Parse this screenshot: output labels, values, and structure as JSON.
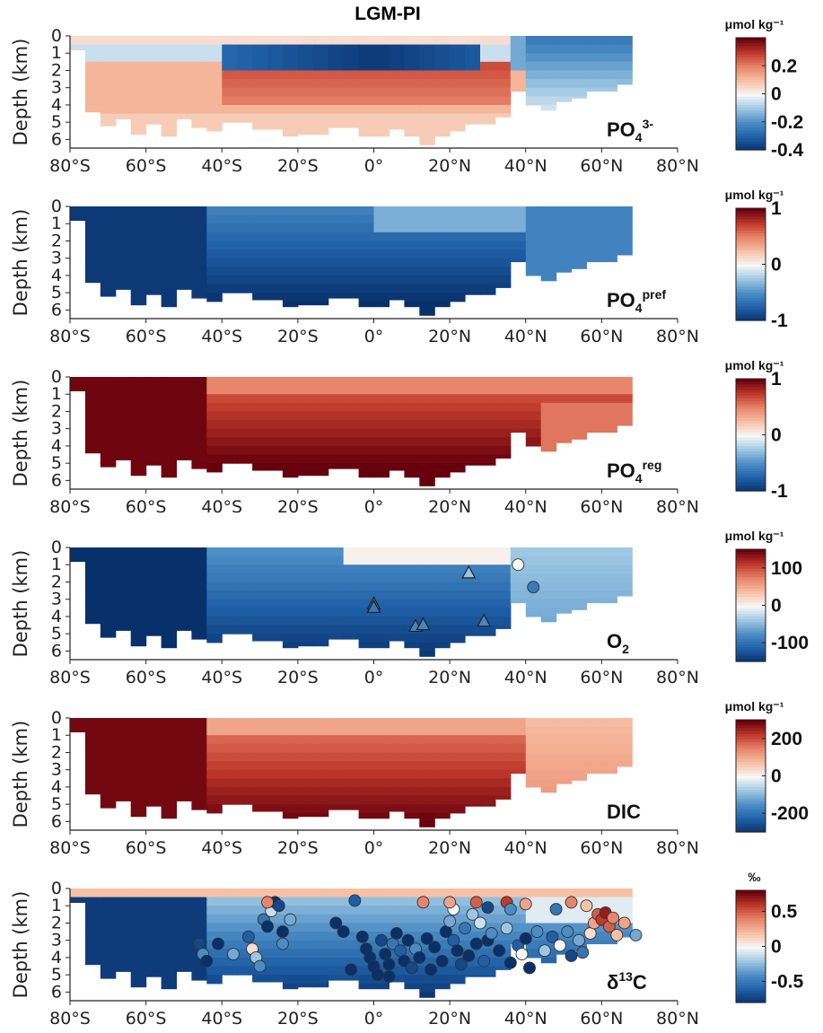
{
  "title": "LGM-PI",
  "colors": {
    "diverging_scale": [
      "#08306b",
      "#1f5fa6",
      "#4a8cc4",
      "#9cc6e2",
      "#f7f7f7",
      "#f7c1a6",
      "#e8856a",
      "#c0392b",
      "#67000d"
    ],
    "axis": "#222222"
  },
  "chart_data": [
    {
      "type": "heatmap",
      "name": "PO4 3-",
      "var_label": "PO",
      "var_sub": "4",
      "var_sup": "3-",
      "unit_label": "μmol kg⁻¹",
      "ylabel": "Depth (km)",
      "x_ticks": [
        "80°S",
        "60°S",
        "40°S",
        "20°S",
        "0°",
        "20°N",
        "40°N",
        "60°N",
        "80°N"
      ],
      "y_ticks": [
        "0",
        "1",
        "2",
        "3",
        "4",
        "5",
        "6"
      ],
      "xlim": [
        -80,
        80
      ],
      "ylim": [
        0,
        6.5
      ],
      "clim": [
        -0.4,
        0.4
      ],
      "cbar_ticks": [
        "0.2",
        "0",
        "-0.2",
        "-0.4"
      ],
      "cbar_tick_values": [
        0.2,
        0,
        -0.2,
        -0.4
      ],
      "markers": []
    },
    {
      "type": "heatmap",
      "name": "PO4 pref",
      "var_label": "PO",
      "var_sub": "4",
      "var_sup": "pref",
      "unit_label": "μmol kg⁻¹",
      "ylabel": "Depth (km)",
      "x_ticks": [
        "80°S",
        "60°S",
        "40°S",
        "20°S",
        "0°",
        "20°N",
        "40°N",
        "60°N",
        "80°N"
      ],
      "y_ticks": [
        "0",
        "1",
        "2",
        "3",
        "4",
        "5",
        "6"
      ],
      "xlim": [
        -80,
        80
      ],
      "ylim": [
        0,
        6.5
      ],
      "clim": [
        -1,
        1
      ],
      "cbar_ticks": [
        "1",
        "0",
        "-1"
      ],
      "cbar_tick_values": [
        1,
        0,
        -1
      ],
      "markers": []
    },
    {
      "type": "heatmap",
      "name": "PO4 reg",
      "var_label": "PO",
      "var_sub": "4",
      "var_sup": "reg",
      "unit_label": "μmol kg⁻¹",
      "ylabel": "Depth (km)",
      "x_ticks": [
        "80°S",
        "60°S",
        "40°S",
        "20°S",
        "0°",
        "20°N",
        "40°N",
        "60°N",
        "80°N"
      ],
      "y_ticks": [
        "0",
        "1",
        "2",
        "3",
        "4",
        "5",
        "6"
      ],
      "xlim": [
        -80,
        80
      ],
      "ylim": [
        0,
        6.5
      ],
      "clim": [
        -1,
        1
      ],
      "cbar_ticks": [
        "1",
        "0",
        "-1"
      ],
      "cbar_tick_values": [
        1,
        0,
        -1
      ],
      "markers": []
    },
    {
      "type": "heatmap",
      "name": "O2",
      "var_label": "O",
      "var_sub": "2",
      "var_sup": "",
      "unit_label": "μmol kg⁻¹",
      "ylabel": "Depth (km)",
      "x_ticks": [
        "80°S",
        "60°S",
        "40°S",
        "20°S",
        "0°",
        "20°N",
        "40°N",
        "60°N",
        "80°N"
      ],
      "y_ticks": [
        "0",
        "1",
        "2",
        "3",
        "4",
        "5",
        "6"
      ],
      "xlim": [
        -80,
        80
      ],
      "ylim": [
        0,
        6.5
      ],
      "clim": [
        -150,
        150
      ],
      "cbar_ticks": [
        "100",
        "0",
        "-100"
      ],
      "cbar_tick_values": [
        100,
        0,
        -100
      ],
      "markers": [
        {
          "shape": "triangle",
          "lat": 0,
          "depth": 3.3,
          "value": -90
        },
        {
          "shape": "triangle",
          "lat": 0,
          "depth": 3.5,
          "value": -90
        },
        {
          "shape": "triangle",
          "lat": 11,
          "depth": 4.6,
          "value": -80
        },
        {
          "shape": "triangle",
          "lat": 13,
          "depth": 4.5,
          "value": -80
        },
        {
          "shape": "triangle",
          "lat": 25,
          "depth": 1.5,
          "value": -40
        },
        {
          "shape": "triangle",
          "lat": 29,
          "depth": 4.3,
          "value": -80
        },
        {
          "shape": "circle",
          "lat": 38,
          "depth": 1.0,
          "value": 0
        },
        {
          "shape": "circle",
          "lat": 42,
          "depth": 2.3,
          "value": -90
        }
      ]
    },
    {
      "type": "heatmap",
      "name": "DIC",
      "var_label": "DIC",
      "var_sub": "",
      "var_sup": "",
      "unit_label": "μmol kg⁻¹",
      "ylabel": "Depth (km)",
      "x_ticks": [
        "80°S",
        "60°S",
        "40°S",
        "20°S",
        "0°",
        "20°N",
        "40°N",
        "60°N",
        "80°N"
      ],
      "y_ticks": [
        "0",
        "1",
        "2",
        "3",
        "4",
        "5",
        "6"
      ],
      "xlim": [
        -80,
        80
      ],
      "ylim": [
        0,
        6.5
      ],
      "clim": [
        -300,
        300
      ],
      "cbar_ticks": [
        "200",
        "0",
        "-200"
      ],
      "cbar_tick_values": [
        200,
        0,
        -200
      ],
      "markers": []
    },
    {
      "type": "heatmap",
      "name": "d13C",
      "var_label": "δ",
      "var_sub": "",
      "var_sup": "13",
      "var_tail": "C",
      "unit_label": "‰",
      "ylabel": "Depth (km)",
      "x_ticks": [
        "80°S",
        "60°S",
        "40°S",
        "20°S",
        "0°",
        "20°N",
        "40°N",
        "60°N",
        "80°N"
      ],
      "y_ticks": [
        "0",
        "1",
        "2",
        "3",
        "4",
        "5",
        "6"
      ],
      "xlim": [
        -80,
        80
      ],
      "ylim": [
        0,
        6.5
      ],
      "clim": [
        -0.8,
        0.8
      ],
      "cbar_ticks": [
        "0.5",
        "0",
        "-0.5"
      ],
      "cbar_tick_values": [
        0.5,
        0,
        -0.5
      ],
      "markers": [
        {
          "shape": "circle",
          "lat": -46,
          "depth": 3.2,
          "value": -0.7
        },
        {
          "shape": "circle",
          "lat": -45,
          "depth": 3.8,
          "value": -0.4
        },
        {
          "shape": "circle",
          "lat": -44,
          "depth": 4.2,
          "value": -0.9
        },
        {
          "shape": "circle",
          "lat": -41,
          "depth": 3.2,
          "value": -0.8
        },
        {
          "shape": "circle",
          "lat": -37,
          "depth": 3.8,
          "value": -0.3
        },
        {
          "shape": "circle",
          "lat": -33,
          "depth": 2.8,
          "value": -0.6
        },
        {
          "shape": "circle",
          "lat": -32,
          "depth": 3.5,
          "value": 0.1
        },
        {
          "shape": "circle",
          "lat": -31,
          "depth": 4.0,
          "value": -0.2
        },
        {
          "shape": "circle",
          "lat": -30,
          "depth": 4.5,
          "value": -0.4
        },
        {
          "shape": "circle",
          "lat": -29,
          "depth": 1.8,
          "value": -0.5
        },
        {
          "shape": "circle",
          "lat": -28,
          "depth": 2.2,
          "value": -0.9
        },
        {
          "shape": "circle",
          "lat": -27,
          "depth": 1.3,
          "value": -0.1
        },
        {
          "shape": "circle",
          "lat": -26,
          "depth": 0.8,
          "value": -0.9
        },
        {
          "shape": "circle",
          "lat": -25,
          "depth": 1.0,
          "value": -0.7
        },
        {
          "shape": "circle",
          "lat": -24,
          "depth": 2.5,
          "value": -0.8
        },
        {
          "shape": "circle",
          "lat": -22,
          "depth": 1.8,
          "value": -0.3
        },
        {
          "shape": "circle",
          "lat": -24,
          "depth": 3.2,
          "value": -0.4
        },
        {
          "shape": "circle",
          "lat": -28,
          "depth": 0.8,
          "value": 0.4
        },
        {
          "shape": "circle",
          "lat": -10,
          "depth": 2.0,
          "value": -0.9
        },
        {
          "shape": "circle",
          "lat": -8,
          "depth": 2.5,
          "value": -0.8
        },
        {
          "shape": "circle",
          "lat": -5,
          "depth": 0.7,
          "value": -0.6
        },
        {
          "shape": "circle",
          "lat": -3,
          "depth": 2.8,
          "value": -0.9
        },
        {
          "shape": "circle",
          "lat": -2,
          "depth": 3.5,
          "value": -0.8
        },
        {
          "shape": "circle",
          "lat": -1,
          "depth": 4.0,
          "value": -0.9
        },
        {
          "shape": "circle",
          "lat": 0,
          "depth": 4.5,
          "value": -0.9
        },
        {
          "shape": "circle",
          "lat": 1,
          "depth": 5.0,
          "value": -0.9
        },
        {
          "shape": "circle",
          "lat": 2,
          "depth": 3.0,
          "value": -0.7
        },
        {
          "shape": "circle",
          "lat": 3,
          "depth": 3.8,
          "value": -0.9
        },
        {
          "shape": "circle",
          "lat": 4,
          "depth": 4.4,
          "value": -0.8
        },
        {
          "shape": "circle",
          "lat": 5,
          "depth": 3.2,
          "value": -0.5
        },
        {
          "shape": "circle",
          "lat": 6,
          "depth": 2.6,
          "value": -0.9
        },
        {
          "shape": "circle",
          "lat": 7,
          "depth": 3.6,
          "value": -0.6
        },
        {
          "shape": "circle",
          "lat": 8,
          "depth": 4.2,
          "value": -0.9
        },
        {
          "shape": "circle",
          "lat": 9,
          "depth": 3.0,
          "value": -0.9
        },
        {
          "shape": "circle",
          "lat": 10,
          "depth": 4.6,
          "value": -0.7
        },
        {
          "shape": "circle",
          "lat": 11,
          "depth": 3.5,
          "value": -0.4
        },
        {
          "shape": "circle",
          "lat": 12,
          "depth": 4.0,
          "value": -0.9
        },
        {
          "shape": "circle",
          "lat": 14,
          "depth": 2.9,
          "value": -0.8
        },
        {
          "shape": "circle",
          "lat": 16,
          "depth": 3.4,
          "value": -0.9
        },
        {
          "shape": "circle",
          "lat": 18,
          "depth": 4.2,
          "value": -0.8
        },
        {
          "shape": "circle",
          "lat": 19,
          "depth": 2.5,
          "value": -0.9
        },
        {
          "shape": "circle",
          "lat": 20,
          "depth": 1.9,
          "value": -0.3
        },
        {
          "shape": "circle",
          "lat": 21,
          "depth": 1.2,
          "value": 0.0
        },
        {
          "shape": "circle",
          "lat": 21,
          "depth": 3.0,
          "value": -0.6
        },
        {
          "shape": "circle",
          "lat": 22,
          "depth": 3.6,
          "value": -0.9
        },
        {
          "shape": "circle",
          "lat": 23,
          "depth": 4.4,
          "value": -0.7
        },
        {
          "shape": "circle",
          "lat": 24,
          "depth": 2.3,
          "value": -0.5
        },
        {
          "shape": "circle",
          "lat": 25,
          "depth": 3.9,
          "value": -0.9
        },
        {
          "shape": "circle",
          "lat": 26,
          "depth": 1.5,
          "value": -0.2
        },
        {
          "shape": "circle",
          "lat": 27,
          "depth": 3.2,
          "value": -0.8
        },
        {
          "shape": "circle",
          "lat": 28,
          "depth": 2.0,
          "value": -0.1
        },
        {
          "shape": "circle",
          "lat": 29,
          "depth": 4.2,
          "value": -0.6
        },
        {
          "shape": "circle",
          "lat": 30,
          "depth": 3.0,
          "value": -0.9
        },
        {
          "shape": "circle",
          "lat": 31,
          "depth": 2.6,
          "value": -0.4
        },
        {
          "shape": "circle",
          "lat": 33,
          "depth": 3.6,
          "value": -0.9
        },
        {
          "shape": "circle",
          "lat": 35,
          "depth": 2.3,
          "value": -0.2
        },
        {
          "shape": "circle",
          "lat": 36,
          "depth": 4.3,
          "value": -0.8
        },
        {
          "shape": "circle",
          "lat": 38,
          "depth": 3.3,
          "value": -0.6
        },
        {
          "shape": "circle",
          "lat": 39,
          "depth": 3.8,
          "value": 0.0
        },
        {
          "shape": "circle",
          "lat": 40,
          "depth": 2.9,
          "value": -0.8
        },
        {
          "shape": "circle",
          "lat": 41,
          "depth": 4.6,
          "value": -0.9
        },
        {
          "shape": "circle",
          "lat": 43,
          "depth": 2.5,
          "value": -0.4
        },
        {
          "shape": "circle",
          "lat": 45,
          "depth": 3.6,
          "value": -0.2
        },
        {
          "shape": "circle",
          "lat": 47,
          "depth": 2.8,
          "value": -0.6
        },
        {
          "shape": "circle",
          "lat": 49,
          "depth": 3.3,
          "value": 0.0
        },
        {
          "shape": "circle",
          "lat": 51,
          "depth": 2.5,
          "value": -0.4
        },
        {
          "shape": "circle",
          "lat": 52,
          "depth": 3.9,
          "value": -0.7
        },
        {
          "shape": "circle",
          "lat": 54,
          "depth": 3.0,
          "value": -0.3
        },
        {
          "shape": "circle",
          "lat": 55,
          "depth": 3.7,
          "value": -0.5
        },
        {
          "shape": "circle",
          "lat": 57,
          "depth": 2.6,
          "value": 0.1
        },
        {
          "shape": "circle",
          "lat": 58,
          "depth": 2.0,
          "value": 0.3
        },
        {
          "shape": "circle",
          "lat": 59,
          "depth": 1.5,
          "value": 0.5
        },
        {
          "shape": "circle",
          "lat": 60,
          "depth": 1.8,
          "value": 0.6
        },
        {
          "shape": "circle",
          "lat": 61,
          "depth": 1.4,
          "value": 0.7
        },
        {
          "shape": "circle",
          "lat": 62,
          "depth": 2.2,
          "value": 0.5
        },
        {
          "shape": "circle",
          "lat": 63,
          "depth": 1.7,
          "value": 0.4
        },
        {
          "shape": "circle",
          "lat": 64,
          "depth": 2.7,
          "value": 0.2
        },
        {
          "shape": "circle",
          "lat": 66,
          "depth": 2.0,
          "value": 0.3
        },
        {
          "shape": "circle",
          "lat": 69,
          "depth": 2.7,
          "value": -0.3
        },
        {
          "shape": "circle",
          "lat": 13,
          "depth": 0.8,
          "value": 0.4
        },
        {
          "shape": "circle",
          "lat": 20,
          "depth": 0.8,
          "value": 0.3
        },
        {
          "shape": "circle",
          "lat": 27,
          "depth": 0.8,
          "value": 0.5
        },
        {
          "shape": "circle",
          "lat": 30,
          "depth": 1.1,
          "value": -0.7
        },
        {
          "shape": "circle",
          "lat": 35,
          "depth": 0.8,
          "value": 0.6
        },
        {
          "shape": "circle",
          "lat": 36,
          "depth": 1.2,
          "value": -0.4
        },
        {
          "shape": "circle",
          "lat": 40,
          "depth": 0.9,
          "value": 0.3
        },
        {
          "shape": "circle",
          "lat": 48,
          "depth": 1.2,
          "value": -0.5
        },
        {
          "shape": "circle",
          "lat": 52,
          "depth": 0.8,
          "value": 0.4
        },
        {
          "shape": "circle",
          "lat": 56,
          "depth": 1.0,
          "value": 0.2
        },
        {
          "shape": "circle",
          "lat": -6,
          "depth": 4.7,
          "value": -0.9
        },
        {
          "shape": "circle",
          "lat": 4,
          "depth": 5.1,
          "value": -0.9
        },
        {
          "shape": "circle",
          "lat": 15,
          "depth": 4.7,
          "value": -0.8
        }
      ]
    }
  ]
}
